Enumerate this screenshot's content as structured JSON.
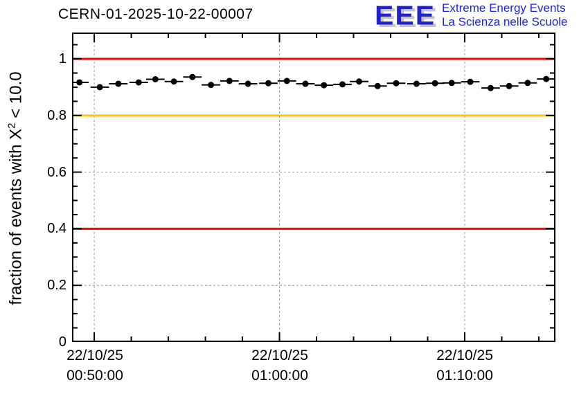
{
  "logo": {
    "acronym": "EEE",
    "line1": "Extreme Energy Events",
    "line2": "La Scienza nelle Scuole",
    "color": "#2222cc",
    "shadow_color": "#c4c4c4"
  },
  "chart_data": {
    "type": "scatter",
    "title": "CERN-01-2025-10-22-00007",
    "ylabel_prefix": "fraction of events with X",
    "ylabel_sup": "2",
    "ylabel_suffix": " < 10.0",
    "ylim": [
      0,
      1.093
    ],
    "y_major_step": 0.2,
    "y_minor_step": 0.05,
    "y_tick_labels": [
      "0",
      "0.2",
      "0.4",
      "0.6",
      "0.8",
      "1"
    ],
    "grid": true,
    "legend": "none",
    "x_axis": {
      "min_minutes": 48.8,
      "max_minutes": 74.9,
      "major_ticks_minutes": [
        50,
        60,
        70
      ],
      "minor_step_minutes": 2,
      "tick_labels": [
        {
          "date": "22/10/25",
          "time": "00:50:00"
        },
        {
          "date": "22/10/25",
          "time": "01:00:00"
        },
        {
          "date": "22/10/25",
          "time": "01:10:00"
        }
      ]
    },
    "reference_lines": [
      {
        "y": 1.0,
        "color": "#ff0000"
      },
      {
        "y": 0.8,
        "color": "#ffc800"
      },
      {
        "y": 0.4,
        "color": "#ff0000"
      }
    ],
    "series": [
      {
        "name": "fraction of events with chi2 < 10 per minute",
        "marker": "filled-circle",
        "color": "#000000",
        "x_err_minutes": 0.5,
        "points": [
          {
            "t": 49.2,
            "y": 0.917
          },
          {
            "t": 50.3,
            "y": 0.9
          },
          {
            "t": 51.3,
            "y": 0.912
          },
          {
            "t": 52.4,
            "y": 0.917
          },
          {
            "t": 53.3,
            "y": 0.928
          },
          {
            "t": 54.3,
            "y": 0.92
          },
          {
            "t": 55.3,
            "y": 0.936
          },
          {
            "t": 56.3,
            "y": 0.908
          },
          {
            "t": 57.3,
            "y": 0.922
          },
          {
            "t": 58.3,
            "y": 0.912
          },
          {
            "t": 59.4,
            "y": 0.914
          },
          {
            "t": 60.4,
            "y": 0.922
          },
          {
            "t": 61.4,
            "y": 0.912
          },
          {
            "t": 62.4,
            "y": 0.907
          },
          {
            "t": 63.4,
            "y": 0.91
          },
          {
            "t": 64.3,
            "y": 0.92
          },
          {
            "t": 65.3,
            "y": 0.904
          },
          {
            "t": 66.3,
            "y": 0.914
          },
          {
            "t": 67.4,
            "y": 0.912
          },
          {
            "t": 68.4,
            "y": 0.914
          },
          {
            "t": 69.3,
            "y": 0.915
          },
          {
            "t": 70.3,
            "y": 0.919
          },
          {
            "t": 71.4,
            "y": 0.897
          },
          {
            "t": 72.4,
            "y": 0.904
          },
          {
            "t": 73.4,
            "y": 0.915
          },
          {
            "t": 74.4,
            "y": 0.929
          }
        ]
      }
    ],
    "colors": {
      "grid": "#999999",
      "axis": "#000000",
      "frame": "#000000"
    }
  }
}
